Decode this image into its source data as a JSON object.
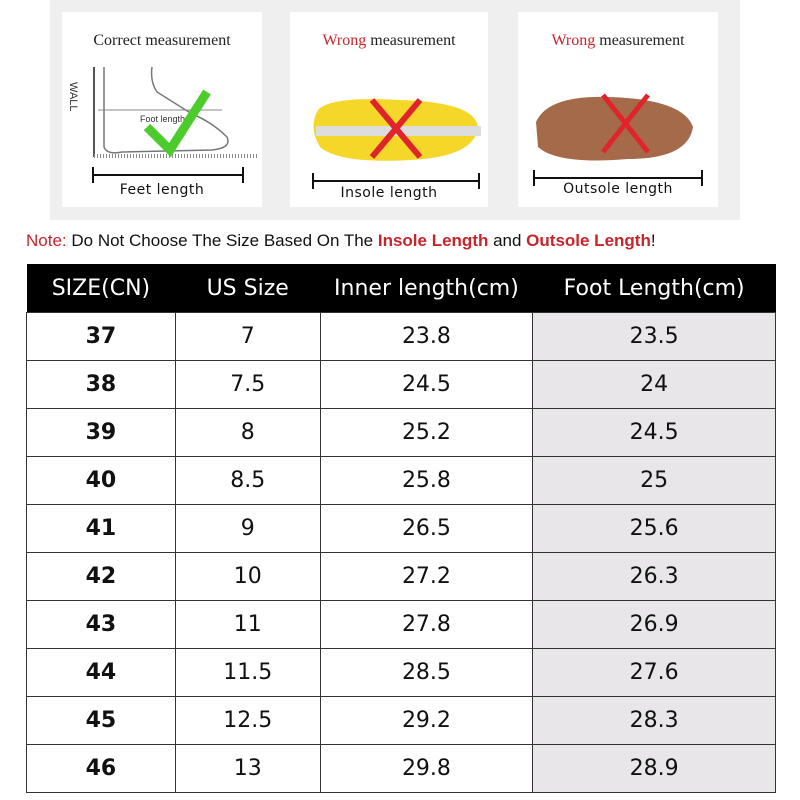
{
  "measurement": {
    "cards": [
      {
        "title_prefix": "",
        "title": "Correct measurement",
        "label": "Feet length",
        "wall": "WALL",
        "foot_label": "Foot length",
        "mark": "check"
      },
      {
        "title_prefix": "Wrong",
        "title": " measurement",
        "label": "Insole length",
        "mark": "cross"
      },
      {
        "title_prefix": "Wrong",
        "title": " measurement",
        "label": "Outsole length",
        "mark": "cross"
      }
    ]
  },
  "note": {
    "prefix": "Note:",
    "text1": " Do Not Choose The Size Based On The ",
    "hl1": "Insole Length",
    "text2": " and ",
    "hl2": "Outsole Length",
    "end": "!"
  },
  "colors": {
    "accent_red": "#c8242c",
    "header_bg": "#000000",
    "highlight_col": "#e8e6e8"
  },
  "table": {
    "headers": [
      "SIZE(CN)",
      "US Size",
      "Inner length(cm)",
      "Foot Length(cm)"
    ],
    "rows": [
      [
        "37",
        "7",
        "23.8",
        "23.5"
      ],
      [
        "38",
        "7.5",
        "24.5",
        "24"
      ],
      [
        "39",
        "8",
        "25.2",
        "24.5"
      ],
      [
        "40",
        "8.5",
        "25.8",
        "25"
      ],
      [
        "41",
        "9",
        "26.5",
        "25.6"
      ],
      [
        "42",
        "10",
        "27.2",
        "26.3"
      ],
      [
        "43",
        "11",
        "27.8",
        "26.9"
      ],
      [
        "44",
        "11.5",
        "28.5",
        "27.6"
      ],
      [
        "45",
        "12.5",
        "29.2",
        "28.3"
      ],
      [
        "46",
        "13",
        "29.8",
        "28.9"
      ]
    ]
  }
}
